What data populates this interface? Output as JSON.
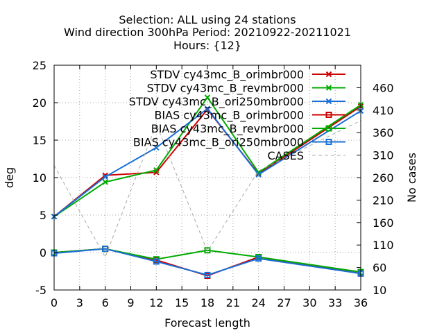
{
  "chart_data": {
    "type": "line",
    "title": [
      "Selection: ALL using    24 stations",
      "Wind direction 300hPa   Period: 20210922-20211021",
      "Hours: {12}"
    ],
    "xlabel": "Forecast length",
    "ylabel": "deg",
    "y2label": "No cases",
    "xlim": [
      0,
      36
    ],
    "ylim": [
      -5,
      25
    ],
    "y2lim": [
      10,
      510
    ],
    "xticks": [
      0,
      3,
      6,
      9,
      12,
      15,
      18,
      21,
      24,
      27,
      30,
      33,
      36
    ],
    "yticks": [
      -5,
      0,
      5,
      10,
      15,
      20,
      25
    ],
    "y2ticks": [
      10,
      60,
      110,
      160,
      210,
      260,
      310,
      360,
      410,
      460
    ],
    "grid": true,
    "legend_position": "top-right",
    "x": [
      0,
      6,
      12,
      18,
      24,
      36
    ],
    "series": [
      {
        "name": "STDV cy43mc_B_orimbr000",
        "color": "#cc0000",
        "marker": "x",
        "axis": "y",
        "values": [
          4.8,
          10.3,
          10.7,
          19.1,
          10.5,
          19.5
        ]
      },
      {
        "name": "STDV cy43mc_B_revmbr000",
        "color": "#00aa00",
        "marker": "x",
        "axis": "y",
        "values": [
          4.8,
          9.4,
          11.0,
          20.7,
          10.7,
          19.7
        ]
      },
      {
        "name": "STDV cy43mc_B_ori250mbr000",
        "color": "#1a6fd6",
        "marker": "x",
        "axis": "y",
        "values": [
          4.8,
          10.1,
          14.0,
          19.2,
          10.4,
          18.9
        ]
      },
      {
        "name": "BIAS cy43mc_B_orimbr000",
        "color": "#cc0000",
        "marker": "square",
        "axis": "y",
        "values": [
          0.0,
          0.5,
          -1.0,
          -3.1,
          -0.6,
          -2.8
        ]
      },
      {
        "name": "BIAS cy43mc_B_revmbr000",
        "color": "#00aa00",
        "marker": "square",
        "axis": "y",
        "values": [
          0.0,
          0.5,
          -0.9,
          0.3,
          -0.6,
          -2.6
        ]
      },
      {
        "name": "BIAS cy43mc_B_ori250mbr000",
        "color": "#1a6fd6",
        "marker": "square",
        "axis": "y",
        "values": [
          -0.1,
          0.5,
          -1.2,
          -3.0,
          -0.8,
          -2.8
        ]
      },
      {
        "name": "CASES",
        "color": "#aaaaaa",
        "marker": "none",
        "dashed": true,
        "axis": "y2",
        "values": [
          287,
          83,
          379,
          96,
          275,
          387
        ]
      }
    ]
  }
}
